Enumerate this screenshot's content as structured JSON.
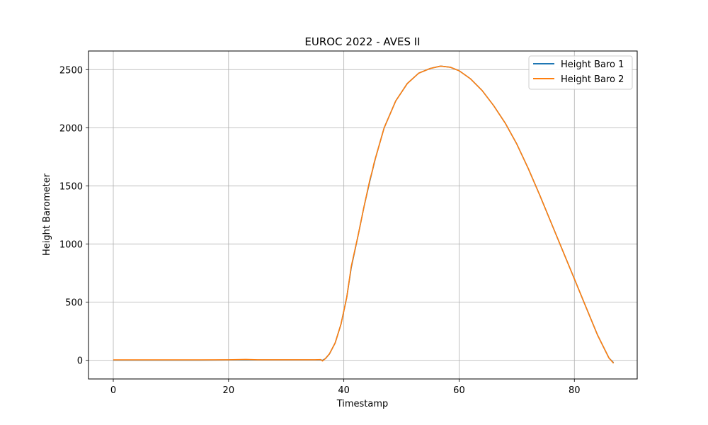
{
  "chart_data": {
    "type": "line",
    "title": "EUROC 2022 - AVES II",
    "xlabel": "Timestamp",
    "ylabel": "Height Barometer",
    "xlim": [
      -4.3,
      90.9
    ],
    "ylim": [
      -160,
      2660
    ],
    "xticks": [
      0,
      20,
      40,
      60,
      80
    ],
    "yticks": [
      0,
      500,
      1000,
      1500,
      2000,
      2500
    ],
    "grid": true,
    "legend_position": "top-right",
    "series": [
      {
        "name": "Height Baro 1",
        "color": "#1f77b4",
        "x": [
          0,
          5,
          10,
          15,
          20,
          23,
          25,
          30,
          35,
          36,
          36.3,
          36.8,
          37.5,
          38.5,
          39.5,
          40.5,
          41.3,
          42.5,
          43.5,
          44.5,
          45.5,
          47,
          49,
          51,
          53,
          55,
          56.8,
          58.5,
          60,
          62,
          64,
          66,
          68,
          70,
          72,
          74,
          76,
          78,
          80,
          82,
          84,
          86,
          86.8
        ],
        "y": [
          2,
          2,
          2,
          2,
          3,
          5,
          3,
          3,
          3,
          4,
          0,
          15,
          55,
          150,
          310,
          540,
          800,
          1080,
          1320,
          1540,
          1740,
          2000,
          2230,
          2380,
          2470,
          2510,
          2530,
          2520,
          2490,
          2420,
          2320,
          2190,
          2040,
          1860,
          1650,
          1420,
          1180,
          940,
          700,
          460,
          220,
          20,
          -20
        ]
      },
      {
        "name": "Height Baro 2",
        "color": "#ff7f0e",
        "x": [
          0,
          5,
          10,
          15,
          20,
          23,
          25,
          30,
          35,
          36,
          36.3,
          36.8,
          37.5,
          38.5,
          39.5,
          40.5,
          41.3,
          42.5,
          43.5,
          44.5,
          45,
          45.2,
          45.5,
          47,
          49,
          51,
          53,
          55,
          56.8,
          58.5,
          60,
          62,
          64,
          66,
          68,
          70,
          72,
          74,
          76,
          78,
          80,
          82,
          84,
          86,
          86.8
        ],
        "y": [
          4,
          4,
          4,
          4,
          5,
          8,
          5,
          5,
          5,
          6,
          -5,
          16,
          56,
          150,
          310,
          540,
          810,
          1080,
          1320,
          1550,
          1640,
          1690,
          1740,
          2000,
          2230,
          2380,
          2470,
          2510,
          2530,
          2520,
          2490,
          2420,
          2320,
          2190,
          2040,
          1860,
          1650,
          1420,
          1180,
          940,
          700,
          460,
          220,
          20,
          -25
        ]
      }
    ]
  }
}
